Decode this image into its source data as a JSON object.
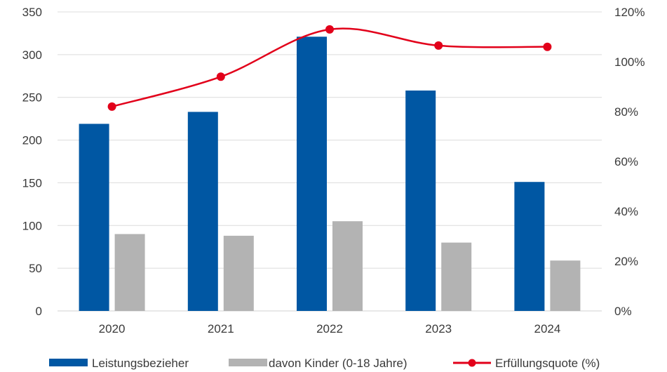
{
  "chart_data": {
    "type": "bar",
    "categories": [
      "2020",
      "2021",
      "2022",
      "2023",
      "2024"
    ],
    "series": [
      {
        "name": "Leistungsbezieher",
        "type": "bar",
        "axis": "left",
        "color": "#0057A3",
        "values": [
          219,
          233,
          321,
          258,
          151
        ]
      },
      {
        "name": "davon Kinder (0-18 Jahre)",
        "type": "bar",
        "axis": "left",
        "color": "#B3B3B3",
        "values": [
          90,
          88,
          105,
          80,
          59
        ]
      },
      {
        "name": "Erfüllungsquote (%)",
        "type": "line",
        "axis": "right",
        "color": "#E2001A",
        "values": [
          82,
          94,
          113,
          106.5,
          106
        ]
      }
    ],
    "y_left": {
      "range": [
        0,
        350
      ],
      "ticks": [
        "0",
        "50",
        "100",
        "150",
        "200",
        "250",
        "300",
        "350"
      ]
    },
    "y_right": {
      "range": [
        0,
        120
      ],
      "ticks": [
        "0%",
        "20%",
        "40%",
        "60%",
        "80%",
        "100%",
        "120%"
      ]
    },
    "grid": true,
    "legend_position": "bottom",
    "title": "",
    "xlabel": "",
    "ylabel": ""
  }
}
